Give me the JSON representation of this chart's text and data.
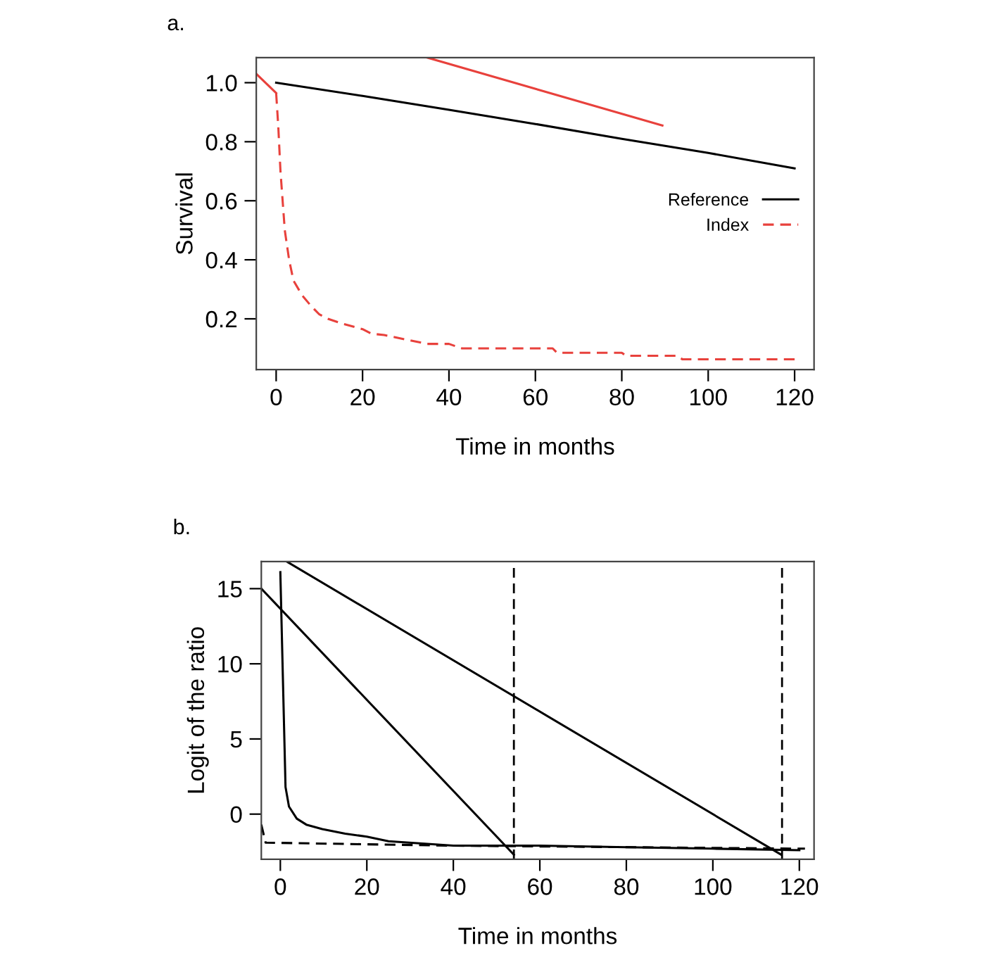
{
  "chart_data": [
    {
      "type": "line",
      "title": "a.",
      "xlabel": "Time in months",
      "ylabel": "Survival",
      "xlim": [
        -4.6,
        124.5
      ],
      "ylim": [
        0.028,
        1.085
      ],
      "xticks": [
        0,
        20,
        40,
        60,
        80,
        100,
        120
      ],
      "yticks": [
        0.2,
        0.4,
        0.6,
        0.8,
        {
          "value": 1.0,
          "label": "1.0"
        }
      ],
      "grid": false,
      "legend": "center right",
      "marker": "none",
      "series": [
        {
          "name": "Reference",
          "color": "#000000",
          "line_style": "solid",
          "x": [
            0,
            20,
            40,
            60,
            80,
            100,
            120
          ],
          "values": [
            1.0,
            0.955,
            0.908,
            0.86,
            0.81,
            0.762,
            0.71
          ]
        },
        {
          "name": "Index",
          "color": "#e8413c",
          "line_style": "dashed",
          "x": [
            0,
            0.5,
            1,
            2,
            3,
            4,
            6,
            8,
            10,
            12,
            15,
            20,
            22,
            25,
            30,
            35,
            40,
            43,
            55,
            64,
            65,
            80,
            81,
            93,
            94,
            120
          ],
          "values": [
            0.965,
            0.85,
            0.7,
            0.5,
            0.4,
            0.33,
            0.28,
            0.245,
            0.215,
            0.2,
            0.185,
            0.165,
            0.15,
            0.145,
            0.13,
            0.115,
            0.115,
            0.1,
            0.1,
            0.1,
            0.085,
            0.085,
            0.075,
            0.075,
            0.063,
            0.063
          ]
        },
        {
          "color": "#e8413c",
          "line_style": "solid",
          "x": [
            -4.6,
            0,
            20,
            35,
            89.4
          ],
          "values": [
            1.03,
            0.965,
            null,
            1.085,
            0.855
          ]
        }
      ]
    },
    {
      "type": "line",
      "title": "b.",
      "xlabel": "Time in months",
      "ylabel": "Logit of the ratio",
      "xlim": [
        -4.4,
        123.4
      ],
      "ylim": [
        -3.0,
        16.8
      ],
      "xticks": [
        0,
        20,
        40,
        60,
        80,
        100,
        120
      ],
      "yticks": [
        0,
        5,
        10,
        15
      ],
      "grid": false,
      "marker": "none",
      "series": [
        {
          "color": "#000000",
          "line_style": "solid",
          "x": [
            0,
            1.2,
            2,
            3.8,
            6,
            9.7,
            15,
            20,
            25,
            40,
            60,
            80,
            100,
            120
          ],
          "values": [
            16.1,
            1.8,
            0.5,
            -0.3,
            -0.7,
            -1.0,
            -1.3,
            -1.5,
            -1.8,
            -2.1,
            -2.1,
            -2.2,
            -2.3,
            -2.4
          ]
        },
        {
          "color": "#000000",
          "line_style": "dashed",
          "x": [
            -4.4,
            -3.4,
            40,
            121.3
          ],
          "values": [
            -0.7,
            -1.9,
            -2.1,
            -2.3
          ]
        },
        {
          "color": "#000000",
          "line_style": "solid",
          "x": [
            -4.4,
            54.0
          ],
          "values": [
            15.0,
            -2.7
          ]
        },
        {
          "color": "#000000",
          "line_style": "solid",
          "x": [
            1.5,
            115.8
          ],
          "values": [
            16.8,
            -2.7
          ]
        }
      ],
      "ref_lines": [
        {
          "axis": "x",
          "value": 54,
          "color": "#000000",
          "line_style": "dashed"
        },
        {
          "axis": "x",
          "value": 116,
          "color": "#000000",
          "line_style": "dashed"
        }
      ]
    }
  ]
}
